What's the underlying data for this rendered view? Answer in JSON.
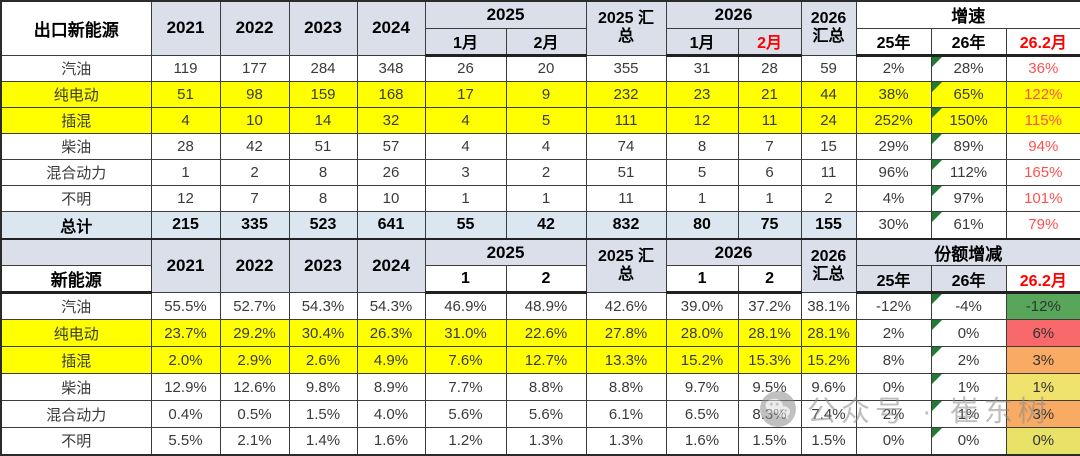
{
  "watermark": {
    "icon": "wechat-icon",
    "text": "公众号 · 崔东树"
  },
  "colors": {
    "header_blue": "#DADFEA",
    "total_row_blue": "#DCE6F1",
    "highlight_yellow": "#FFFF00",
    "header_red": "#FF0000",
    "growth_value_red": "#FF5050",
    "error_triangle_green": "#217B36",
    "share_down_green": "#57A65A",
    "share_up_red": "#F8696B",
    "share_mid_orange": "#F9AA63",
    "share_mid_yellow": "#EFE26D"
  },
  "chart_data": [
    {
      "type": "table",
      "title": "出口新能源",
      "header": {
        "years": [
          "2021",
          "2022",
          "2023",
          "2024"
        ],
        "y2025_label": "2025",
        "y2025_months": [
          "1月",
          "2月"
        ],
        "y2025_sum": "2025 汇\n总",
        "y2026_label": "2026",
        "y2026_months": [
          "1月",
          "2月"
        ],
        "y2026_sum": "2026\n汇总",
        "growth_label": "增速",
        "growth_cols": [
          "25年",
          "26年",
          "26.2月"
        ]
      },
      "rows": [
        {
          "label": "汽油",
          "style": "plain",
          "values": [
            "119",
            "177",
            "284",
            "348",
            "26",
            "20",
            "355",
            "31",
            "28",
            "59",
            "2%",
            "28%",
            "36%"
          ]
        },
        {
          "label": "纯电动",
          "style": "yellow",
          "values": [
            "51",
            "98",
            "159",
            "168",
            "17",
            "9",
            "232",
            "23",
            "21",
            "44",
            "38%",
            "65%",
            "122%"
          ]
        },
        {
          "label": "插混",
          "style": "yellow",
          "values": [
            "4",
            "10",
            "14",
            "32",
            "4",
            "5",
            "111",
            "12",
            "11",
            "24",
            "252%",
            "150%",
            "115%"
          ]
        },
        {
          "label": "柴油",
          "style": "plain",
          "values": [
            "28",
            "42",
            "51",
            "57",
            "4",
            "4",
            "74",
            "8",
            "7",
            "15",
            "29%",
            "89%",
            "94%"
          ]
        },
        {
          "label": "混合动力",
          "style": "plain",
          "values": [
            "1",
            "2",
            "8",
            "26",
            "3",
            "2",
            "51",
            "5",
            "6",
            "11",
            "96%",
            "112%",
            "165%"
          ]
        },
        {
          "label": "不明",
          "style": "plain",
          "values": [
            "12",
            "7",
            "8",
            "10",
            "1",
            "1",
            "11",
            "1",
            "1",
            "2",
            "4%",
            "97%",
            "101%"
          ]
        },
        {
          "label": "总计",
          "style": "total",
          "values": [
            "215",
            "335",
            "523",
            "641",
            "55",
            "42",
            "832",
            "80",
            "75",
            "155",
            "30%",
            "61%",
            "79%"
          ]
        }
      ]
    },
    {
      "type": "table",
      "title": "新能源",
      "header": {
        "years": [
          "2021",
          "2022",
          "2023",
          "2024"
        ],
        "y2025_label": "2025",
        "y2025_months": [
          "1",
          "2"
        ],
        "y2025_sum": "2025 汇\n总",
        "y2026_label": "2026",
        "y2026_months": [
          "1",
          "2"
        ],
        "y2026_sum": "2026\n汇总",
        "growth_label": "份额增减",
        "growth_cols": [
          "25年",
          "26年",
          "26.2月"
        ]
      },
      "rows": [
        {
          "label": "汽油",
          "style": "plain",
          "last_bg": "#57A65A",
          "values": [
            "55.5%",
            "52.7%",
            "54.3%",
            "54.3%",
            "46.9%",
            "48.9%",
            "42.6%",
            "39.0%",
            "37.2%",
            "38.1%",
            "-12%",
            "-4%",
            "-12%"
          ]
        },
        {
          "label": "纯电动",
          "style": "yellow",
          "last_bg": "#F8696B",
          "values": [
            "23.7%",
            "29.2%",
            "30.4%",
            "26.3%",
            "31.0%",
            "22.6%",
            "27.8%",
            "28.0%",
            "28.1%",
            "28.1%",
            "2%",
            "0%",
            "6%"
          ]
        },
        {
          "label": "插混",
          "style": "yellow",
          "last_bg": "#F9AA63",
          "values": [
            "2.0%",
            "2.9%",
            "2.6%",
            "4.9%",
            "7.6%",
            "12.7%",
            "13.3%",
            "15.2%",
            "15.3%",
            "15.2%",
            "8%",
            "2%",
            "3%"
          ]
        },
        {
          "label": "柴油",
          "style": "plain",
          "last_bg": "#EFE26D",
          "values": [
            "12.9%",
            "12.6%",
            "9.8%",
            "8.9%",
            "7.7%",
            "8.8%",
            "8.8%",
            "9.7%",
            "9.5%",
            "9.6%",
            "0%",
            "1%",
            "1%"
          ]
        },
        {
          "label": "混合动力",
          "style": "plain",
          "last_bg": "#F9AA63",
          "values": [
            "0.4%",
            "0.5%",
            "1.5%",
            "4.0%",
            "5.6%",
            "5.6%",
            "6.1%",
            "6.5%",
            "8.3%",
            "7.4%",
            "2%",
            "1%",
            "3%"
          ]
        },
        {
          "label": "不明",
          "style": "plain",
          "last_bg": "#E9E268",
          "values": [
            "5.5%",
            "2.1%",
            "1.4%",
            "1.6%",
            "1.2%",
            "1.3%",
            "1.3%",
            "1.6%",
            "1.5%",
            "1.5%",
            "0%",
            "0%",
            "0%"
          ]
        }
      ]
    }
  ]
}
